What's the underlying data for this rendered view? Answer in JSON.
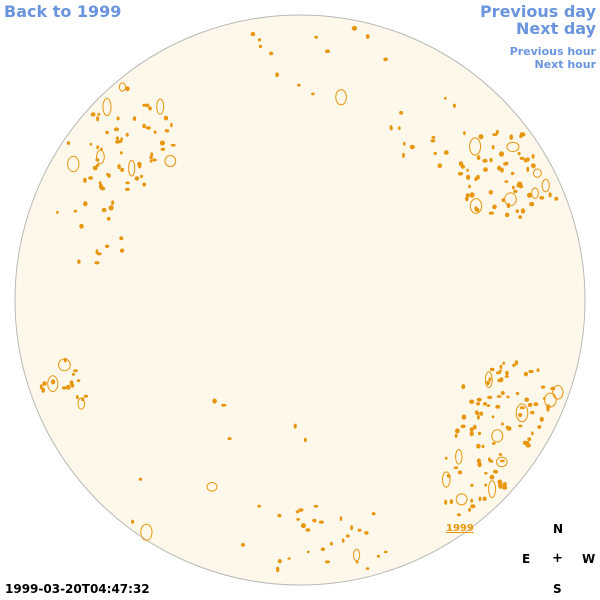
{
  "nav": {
    "back": "Back to 1999",
    "prev_day": "Previous day",
    "next_day": "Next day",
    "prev_hour": "Previous hour",
    "next_hour": "Next hour"
  },
  "compass": {
    "north": "N",
    "south": "S",
    "east": "E",
    "west": "W",
    "center": "+"
  },
  "timestamp": "1999-03-20T04:47:32",
  "year_marker": "1999",
  "colors": {
    "disk_fill": "#fdf8ea",
    "disk_stroke": "#b8b8b8",
    "contour": "#e8960e",
    "nav_text": "#6a95de"
  }
}
